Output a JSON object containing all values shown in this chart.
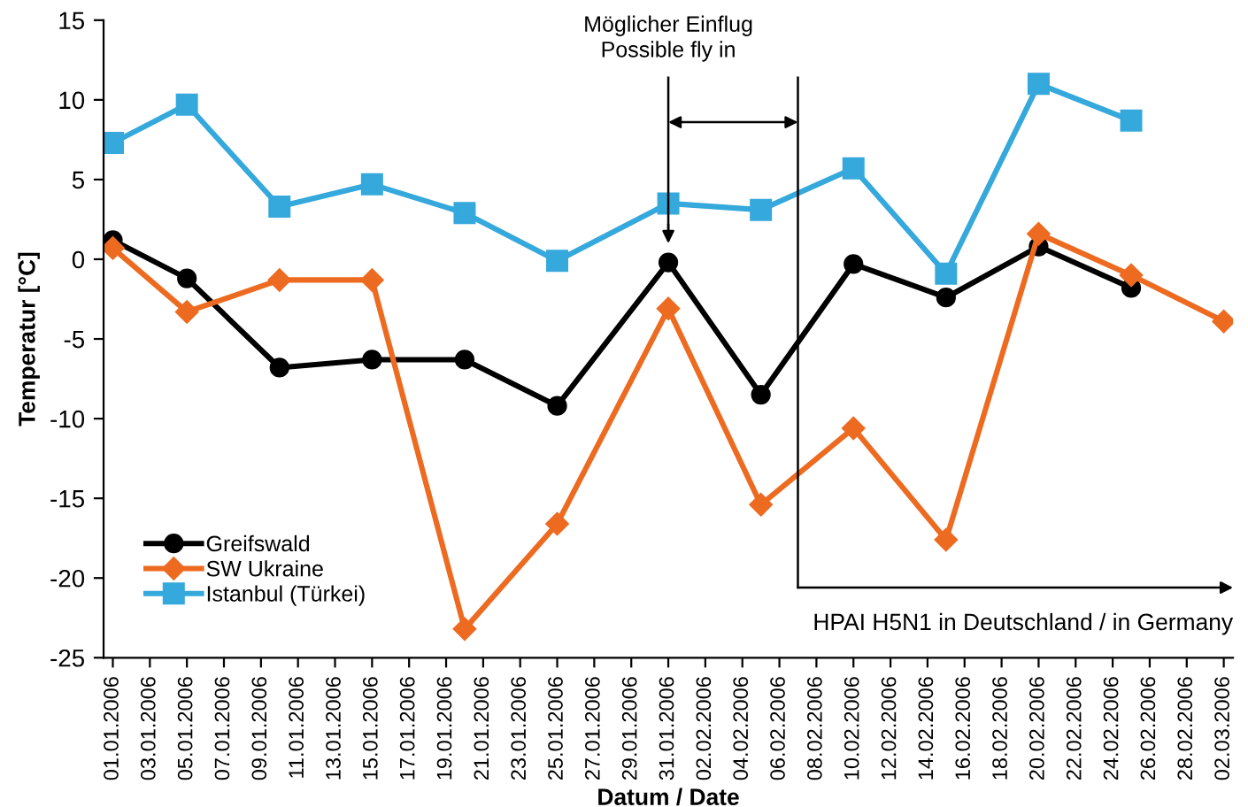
{
  "chart_data": {
    "type": "line",
    "xlabel": "Datum / Date",
    "ylabel": "Temperatur [°C]",
    "x": [
      "2006-01-01",
      "2006-01-05",
      "2006-01-10",
      "2006-01-15",
      "2006-01-20",
      "2006-01-25",
      "2006-01-31",
      "2006-02-05",
      "2006-02-10",
      "2006-02-15",
      "2006-02-20",
      "2006-02-25",
      "2006-03-02"
    ],
    "series": [
      {
        "name": "Greifswald",
        "color": "#000000",
        "marker": "circle",
        "values": [
          1.2,
          -1.2,
          -6.8,
          -6.3,
          -6.3,
          -9.2,
          -0.2,
          -8.5,
          -0.3,
          -2.4,
          0.8,
          -1.8,
          null
        ]
      },
      {
        "name": "SW Ukraine",
        "color": "#ed6b21",
        "marker": "diamond",
        "values": [
          0.7,
          -3.3,
          -1.3,
          -1.3,
          -23.2,
          -16.6,
          -3.1,
          -15.4,
          -10.6,
          -17.6,
          1.6,
          -1.0,
          -3.9
        ]
      },
      {
        "name": "Istanbul (Türkei)",
        "color": "#35a8dc",
        "marker": "square",
        "values": [
          7.3,
          9.7,
          3.3,
          4.7,
          2.9,
          -0.1,
          3.5,
          3.1,
          5.7,
          -0.9,
          11.0,
          8.7,
          null
        ]
      }
    ],
    "ref_lines": [
      {
        "axis": "x",
        "value": "2006-01-31",
        "label": "Möglicher Einflug\nPossible fly in"
      },
      {
        "axis": "x",
        "value": "2006-02-07",
        "label": "HPAI H5N1 in Deutschland / in Germany"
      }
    ],
    "xlim": [
      "2005-12-31T12:00",
      "2006-03-02T12:00"
    ],
    "xticks": [
      {
        "value": "2006-01-01",
        "label": "01.01.2006"
      },
      {
        "value": "2006-01-03",
        "label": "03.01.2006"
      },
      {
        "value": "2006-01-05",
        "label": "05.01.2006"
      },
      {
        "value": "2006-01-07",
        "label": "07.01.2006"
      },
      {
        "value": "2006-01-09",
        "label": "09.01.2006"
      },
      {
        "value": "2006-01-11",
        "label": "11.01.2006"
      },
      {
        "value": "2006-01-13",
        "label": "13.01.2006"
      },
      {
        "value": "2006-01-15",
        "label": "15.01.2006"
      },
      {
        "value": "2006-01-17",
        "label": "17.01.2006"
      },
      {
        "value": "2006-01-19",
        "label": "19.01.2006"
      },
      {
        "value": "2006-01-21",
        "label": "21.01.2006"
      },
      {
        "value": "2006-01-23",
        "label": "23.01.2006"
      },
      {
        "value": "2006-01-25",
        "label": "25.01.2006"
      },
      {
        "value": "2006-01-27",
        "label": "27.01.2006"
      },
      {
        "value": "2006-01-29",
        "label": "29.01.2006"
      },
      {
        "value": "2006-01-31",
        "label": "31.01.2006"
      },
      {
        "value": "2006-02-02",
        "label": "02.02.2006"
      },
      {
        "value": "2006-02-04",
        "label": "04.02.2006"
      },
      {
        "value": "2006-02-06",
        "label": "06.02.2006"
      },
      {
        "value": "2006-02-08",
        "label": "08.02.2006"
      },
      {
        "value": "2006-02-10",
        "label": "10.02.2006"
      },
      {
        "value": "2006-02-12",
        "label": "12.02.2006"
      },
      {
        "value": "2006-02-14",
        "label": "14.02.2006"
      },
      {
        "value": "2006-02-16",
        "label": "16.02.2006"
      },
      {
        "value": "2006-02-18",
        "label": "18.02.2006"
      },
      {
        "value": "2006-02-20",
        "label": "20.02.2006"
      },
      {
        "value": "2006-02-22",
        "label": "22.02.2006"
      },
      {
        "value": "2006-02-24",
        "label": "24.02.2006"
      },
      {
        "value": "2006-02-26",
        "label": "26.02.2006"
      },
      {
        "value": "2006-02-28",
        "label": "28.02.2006"
      },
      {
        "value": "2006-03-02",
        "label": "02.03.2006"
      }
    ],
    "ylim": [
      -25,
      15
    ],
    "yticks": [
      -25,
      -20,
      -15,
      -10,
      -5,
      0,
      5,
      10,
      15
    ],
    "grid": false,
    "legend": "bottom left",
    "line_style": "solid"
  }
}
